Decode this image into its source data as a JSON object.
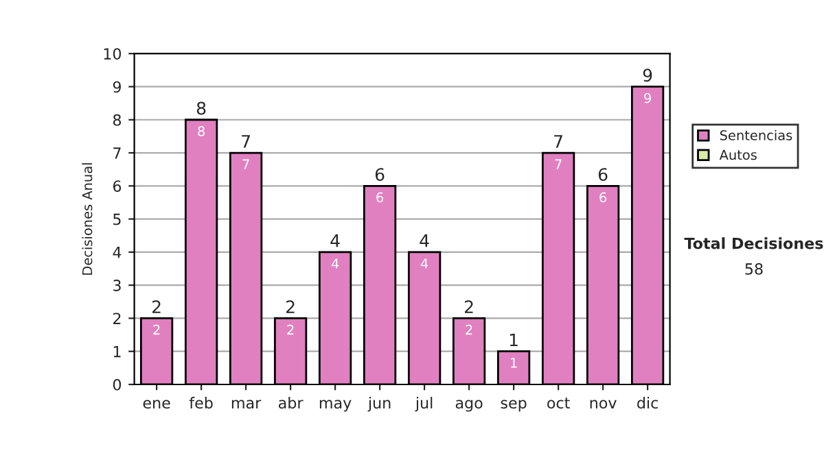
{
  "chart_data": {
    "type": "bar",
    "ylabel": "Decisiones Anual",
    "categories": [
      "ene",
      "feb",
      "mar",
      "abr",
      "may",
      "jun",
      "jul",
      "ago",
      "sep",
      "oct",
      "nov",
      "dic"
    ],
    "series": [
      {
        "name": "Sentencias",
        "color": "#e080c0",
        "values": [
          2,
          8,
          7,
          2,
          4,
          6,
          4,
          2,
          1,
          7,
          6,
          9
        ],
        "value_labels": [
          "2",
          "8",
          "7",
          "2",
          "4",
          "6",
          "4",
          "2",
          "1",
          "7",
          "6",
          "9"
        ]
      },
      {
        "name": "Autos",
        "color": "#d8eca8",
        "values": [
          0,
          0,
          0,
          0,
          0,
          0,
          0,
          0,
          0,
          0,
          0,
          0
        ],
        "value_labels": [
          null,
          null,
          null,
          null,
          null,
          null,
          null,
          null,
          null,
          null,
          null,
          null
        ]
      }
    ],
    "stacked": true,
    "totals": [
      "2",
      "8",
      "7",
      "2",
      "4",
      "6",
      "4",
      "2",
      "1",
      "7",
      "6",
      "9"
    ],
    "ylim": [
      0,
      10
    ],
    "yticks": [
      0,
      1,
      2,
      3,
      4,
      5,
      6,
      7,
      8,
      9,
      10
    ],
    "grid": "y",
    "legend": "right",
    "annotations": [
      "Total Decisiones",
      "58"
    ]
  }
}
